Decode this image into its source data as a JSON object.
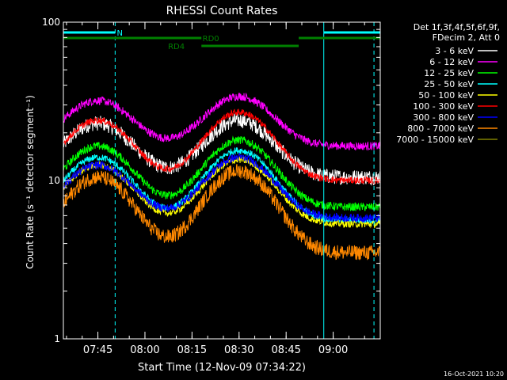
{
  "chart_data": {
    "type": "line",
    "title": "RHESSI Count Rates",
    "ylabel": "Count Rate (s⁻¹ detector segment⁻¹)",
    "xlabel": "Start Time (12-Nov-09 07:34:22)",
    "y_scale": "log",
    "ylim": [
      1,
      100
    ],
    "y_ticks": [
      {
        "v": 1,
        "label": "1"
      },
      {
        "v": 10,
        "label": "10"
      },
      {
        "v": 100,
        "label": "100"
      }
    ],
    "xlim_min": [
      0,
      101
    ],
    "x_ticks": [
      {
        "m": 11,
        "label": "07:45"
      },
      {
        "m": 26,
        "label": "08:00"
      },
      {
        "m": 41,
        "label": "08:15"
      },
      {
        "m": 56,
        "label": "08:30"
      },
      {
        "m": 71,
        "label": "08:45"
      },
      {
        "m": 86,
        "label": "09:00"
      }
    ],
    "legend_header": [
      "Det 1f,3f,4f,5f,6f,9f,",
      "FDecim 2, Att 0"
    ],
    "series": [
      {
        "name": "3 - 6 keV",
        "color": "#ffffff",
        "base": 10.5,
        "peak1": 23,
        "peak2": 24,
        "noise": 0.11
      },
      {
        "name": "6 - 12 keV",
        "color": "#ff00ff",
        "base": 16.5,
        "peak1": 32,
        "peak2": 34,
        "noise": 0.06
      },
      {
        "name": "12 - 25 keV",
        "color": "#00ff00",
        "base": 6.8,
        "peak1": 16.5,
        "peak2": 18,
        "noise": 0.06
      },
      {
        "name": "25 - 50 keV",
        "color": "#00ffff",
        "base": 5.6,
        "peak1": 14,
        "peak2": 15.5,
        "noise": 0.05
      },
      {
        "name": "50 - 100 keV",
        "color": "#ffff00",
        "base": 5.3,
        "peak1": 12.5,
        "peak2": 13.5,
        "noise": 0.05
      },
      {
        "name": "100 - 300 keV",
        "color": "#ff0000",
        "base": 10.0,
        "peak1": 24,
        "peak2": 27,
        "noise": 0.05
      },
      {
        "name": "300 - 800 keV",
        "color": "#0000ff",
        "base": 5.8,
        "peak1": 12.5,
        "peak2": 14,
        "noise": 0.06
      },
      {
        "name": "800 - 7000 keV",
        "color": "#ff8800",
        "base": 3.5,
        "peak1": 10.5,
        "peak2": 11.5,
        "noise": 0.11
      },
      {
        "name": "7000 - 15000 keV",
        "color": "#808000",
        "base": 3.5,
        "peak1": 10.5,
        "peak2": 11.5,
        "noise": 0.0,
        "hidden": true
      }
    ],
    "peak_times_min": [
      11,
      56
    ],
    "status_bars": [
      {
        "label": "N",
        "color": "#00ffff",
        "segments": [
          [
            0,
            16.5
          ],
          [
            83,
            101
          ]
        ],
        "label_at_min": 18
      },
      {
        "label": "RD0",
        "color": "#008000",
        "segments": [
          [
            0,
            44
          ],
          [
            75,
            101
          ]
        ],
        "label_at_min": 47
      },
      {
        "label": "RD4",
        "color": "#008000",
        "segments": [
          [
            44,
            75
          ]
        ],
        "label_at_min": 36
      }
    ],
    "night_lines_min": [
      0,
      16.5,
      83,
      99
    ],
    "grid": false
  },
  "footer_date": "16-Oct-2021 10:20"
}
